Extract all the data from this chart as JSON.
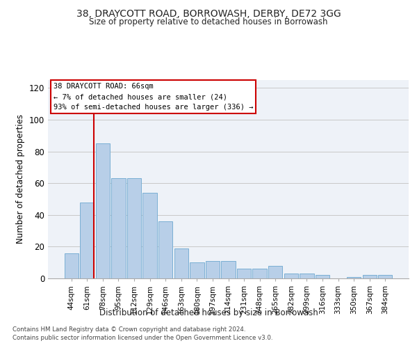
{
  "title1": "38, DRAYCOTT ROAD, BORROWASH, DERBY, DE72 3GG",
  "title2": "Size of property relative to detached houses in Borrowash",
  "xlabel": "Distribution of detached houses by size in Borrowash",
  "ylabel": "Number of detached properties",
  "categories": [
    "44sqm",
    "61sqm",
    "78sqm",
    "95sqm",
    "112sqm",
    "129sqm",
    "146sqm",
    "163sqm",
    "180sqm",
    "197sqm",
    "214sqm",
    "231sqm",
    "248sqm",
    "265sqm",
    "282sqm",
    "299sqm",
    "316sqm",
    "333sqm",
    "350sqm",
    "367sqm",
    "384sqm"
  ],
  "values": [
    16,
    48,
    85,
    63,
    63,
    54,
    36,
    19,
    10,
    11,
    11,
    6,
    6,
    8,
    3,
    3,
    2,
    0,
    1,
    2,
    2
  ],
  "bar_color": "#b8cfe8",
  "bar_edge_color": "#7aafd4",
  "marker_color": "#cc0000",
  "ylim_max": 125,
  "yticks": [
    0,
    20,
    40,
    60,
    80,
    100,
    120
  ],
  "annotation_title": "38 DRAYCOTT ROAD: 66sqm",
  "annotation_line1": "← 7% of detached houses are smaller (24)",
  "annotation_line2": "93% of semi-detached houses are larger (336) →",
  "footer1": "Contains HM Land Registry data © Crown copyright and database right 2024.",
  "footer2": "Contains public sector information licensed under the Open Government Licence v3.0.",
  "bg_color": "#eef2f8"
}
